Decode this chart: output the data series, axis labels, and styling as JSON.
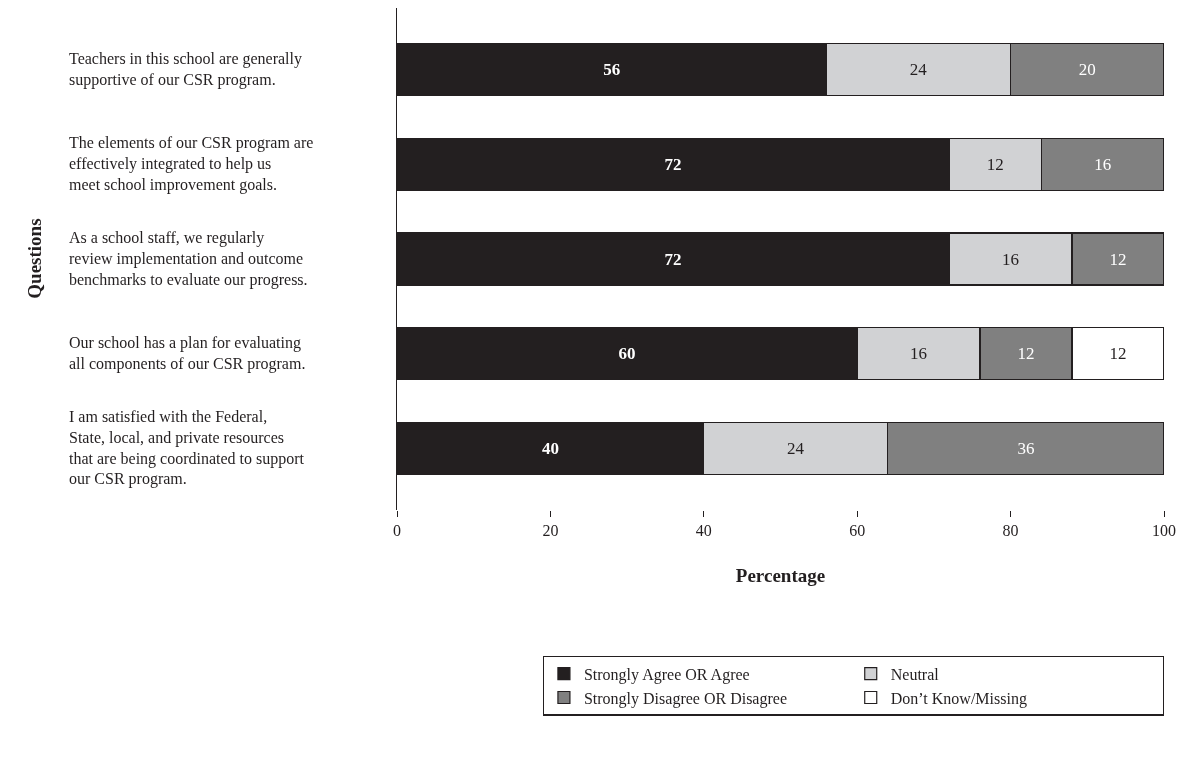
{
  "chart_data": {
    "type": "bar",
    "orientation": "horizontal",
    "stacked": true,
    "xlabel": "Percentage",
    "ylabel": "Questions",
    "categories": [
      "Teachers in this school are generally supportive of our CSR program.",
      "The elements of our CSR program are effectively integrated to help us meet school improvement goals.",
      "As a school staff, we regularly review implementation and outcome benchmarks to evaluate our progress.",
      "Our school has a plan for evaluating all components of our CSR program.",
      "I am satisfied with the Federal, State, local, and private resources that are being coordinated to support our CSR program."
    ],
    "series": [
      {
        "name": "Strongly Agree OR Agree",
        "color": "#231f20",
        "values": [
          56,
          72,
          72,
          60,
          40
        ]
      },
      {
        "name": "Neutral",
        "color": "#d1d2d4",
        "values": [
          24,
          12,
          16,
          16,
          24
        ]
      },
      {
        "name": "Strongly Disagree OR Disagree",
        "color": "#808080",
        "values": [
          20,
          16,
          12,
          12,
          36
        ]
      },
      {
        "name": "Don’t Know/Missing",
        "color": "#ffffff",
        "values": [
          null,
          null,
          null,
          12,
          null
        ]
      }
    ],
    "xlim": [
      0,
      100
    ],
    "xticks": [
      0,
      20,
      40,
      60,
      80,
      100
    ],
    "legend": "bottom",
    "data_labels": true
  }
}
